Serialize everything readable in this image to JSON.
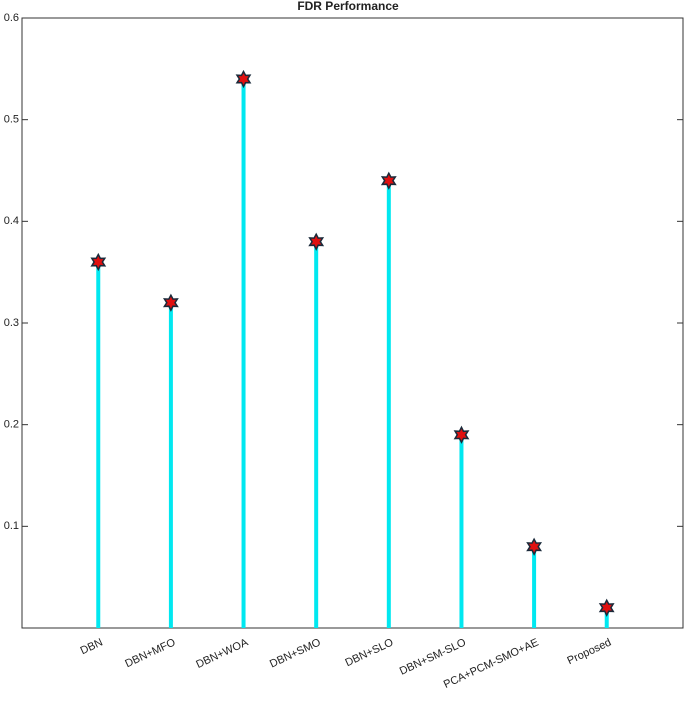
{
  "chart_data": {
    "type": "stem",
    "title": "FDR Performance",
    "categories": [
      "DBN",
      "DBN+MFO",
      "DBN+WOA",
      "DBN+SMO",
      "DBN+SLO",
      "DBN+SM-SLO",
      "PCA+PCM-SMO+AE",
      "Proposed"
    ],
    "values": [
      0.36,
      0.32,
      0.54,
      0.38,
      0.44,
      0.19,
      0.08,
      0.02
    ],
    "color": "#00e8f0",
    "marker_color": "#e01010",
    "ylim": [
      0,
      0.6
    ],
    "yticks": [
      0.1,
      0.2,
      0.3,
      0.4,
      0.5,
      0.6
    ]
  }
}
